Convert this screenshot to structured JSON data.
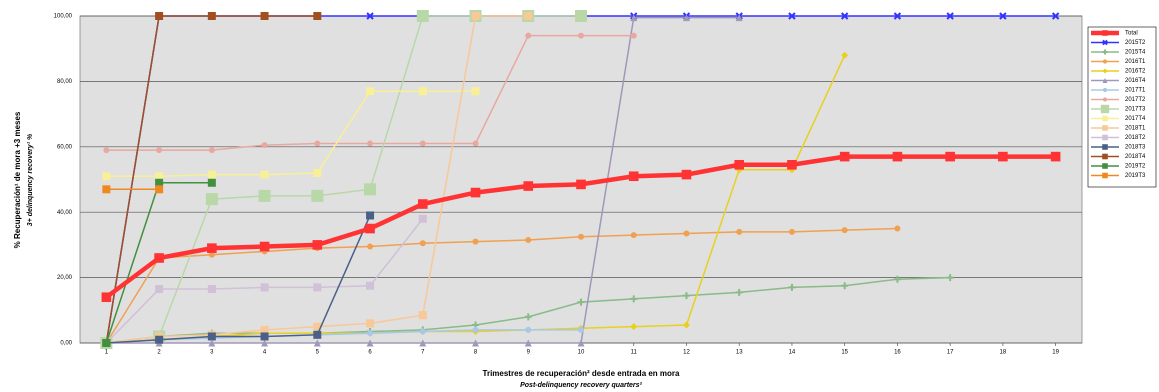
{
  "chart_data": {
    "type": "line",
    "y_title": "% Recuperación¹ de mora +3 meses",
    "y_subtitle": "3+ delinquency recovery¹ %",
    "x_title": "Trimestres de recuperación² desde entrada en mora",
    "x_subtitle": "Post-delinquency recovery quarters²",
    "x": [
      1,
      2,
      3,
      4,
      5,
      6,
      7,
      8,
      9,
      10,
      11,
      12,
      13,
      14,
      15,
      16,
      17,
      18,
      19
    ],
    "xlim": [
      0.5,
      19.5
    ],
    "xticks": [
      1,
      2,
      3,
      4,
      5,
      6,
      7,
      8,
      9,
      10,
      11,
      12,
      13,
      14,
      15,
      16,
      17,
      18,
      19
    ],
    "ylim": [
      0,
      100
    ],
    "yticks": [
      {
        "value": 0,
        "label": "0,00"
      },
      {
        "value": 20,
        "label": "20,00"
      },
      {
        "value": 40,
        "label": "40,00"
      },
      {
        "value": 60,
        "label": "60,00"
      },
      {
        "value": 80,
        "label": "80,00"
      },
      {
        "value": 100,
        "label": "100,00"
      }
    ],
    "grid": true,
    "legend": "right",
    "series": [
      {
        "name": "Total",
        "color": "#ff3333",
        "marker": "square",
        "width": 3,
        "values": [
          14,
          26,
          29,
          29.5,
          30,
          35,
          42.5,
          46,
          48,
          48.5,
          51,
          51.5,
          54.5,
          54.5,
          57,
          57,
          57,
          57,
          57
        ]
      },
      {
        "name": "2015T2",
        "color": "#3333ff",
        "marker": "x",
        "width": 1,
        "values": [
          0,
          100,
          100,
          100,
          100,
          100,
          100,
          100,
          100,
          100,
          100,
          100,
          100,
          100,
          100,
          100,
          100,
          100,
          100
        ]
      },
      {
        "name": "2015T4",
        "color": "#88bb88",
        "marker": "plus",
        "width": 1,
        "values": [
          0,
          2,
          3,
          3,
          3,
          3.5,
          4,
          5.5,
          8,
          12.5,
          13.5,
          14.5,
          15.5,
          17,
          17.5,
          19.5,
          20,
          null,
          null
        ]
      },
      {
        "name": "2016T1",
        "color": "#f0a050",
        "marker": "circle",
        "width": 1,
        "values": [
          0,
          26,
          27,
          28,
          29,
          29.5,
          30.5,
          31,
          31.5,
          32.5,
          33,
          33.5,
          34,
          34,
          34.5,
          35,
          null,
          null,
          null
        ]
      },
      {
        "name": "2016T2",
        "color": "#e8d020",
        "marker": "diamond",
        "width": 1,
        "values": [
          0,
          1,
          2,
          3,
          3,
          3,
          3.5,
          3.5,
          4,
          4.5,
          5,
          5.5,
          53,
          53,
          88,
          null,
          null,
          null,
          null
        ]
      },
      {
        "name": "2016T4",
        "color": "#a098b8",
        "marker": "triangle",
        "width": 1,
        "values": [
          0,
          0,
          0,
          0,
          0,
          0,
          0,
          0,
          0,
          0,
          99.5,
          99.5,
          99.5,
          null,
          null,
          null,
          null,
          null,
          null
        ]
      },
      {
        "name": "2017T1",
        "color": "#a8c8e8",
        "marker": "circle",
        "width": 1,
        "values": [
          0,
          1,
          1.5,
          2,
          2.5,
          3,
          3.5,
          4,
          4,
          4,
          null,
          null,
          null,
          null,
          null,
          null,
          null,
          null,
          null
        ]
      },
      {
        "name": "2017T2",
        "color": "#e8a8a0",
        "marker": "circle",
        "width": 1,
        "values": [
          59,
          59,
          59,
          60.5,
          61,
          61,
          61,
          61,
          94,
          94,
          94,
          null,
          null,
          null,
          null,
          null,
          null,
          null,
          null
        ]
      },
      {
        "name": "2017T3",
        "color": "#b8d8a8",
        "marker": "bigsquare",
        "width": 1,
        "values": [
          0,
          2,
          44,
          45,
          45,
          47,
          100,
          100,
          100,
          100,
          null,
          null,
          null,
          null,
          null,
          null,
          null,
          null,
          null
        ]
      },
      {
        "name": "2017T4",
        "color": "#f8f098",
        "marker": "square",
        "width": 1,
        "values": [
          51,
          51,
          51.5,
          51.5,
          52,
          77,
          77,
          77,
          null,
          null,
          null,
          null,
          null,
          null,
          null,
          null,
          null,
          null,
          null
        ]
      },
      {
        "name": "2018T1",
        "color": "#f8c898",
        "marker": "square",
        "width": 1,
        "values": [
          0,
          2,
          2.5,
          4,
          5,
          6,
          8.5,
          100,
          100,
          null,
          null,
          null,
          null,
          null,
          null,
          null,
          null,
          null,
          null
        ]
      },
      {
        "name": "2018T2",
        "color": "#d0c0d8",
        "marker": "square",
        "width": 1,
        "values": [
          0,
          16.5,
          16.5,
          17,
          17,
          17.5,
          38,
          null,
          null,
          null,
          null,
          null,
          null,
          null,
          null,
          null,
          null,
          null,
          null
        ]
      },
      {
        "name": "2018T3",
        "color": "#4a6088",
        "marker": "square",
        "width": 1,
        "values": [
          0,
          1,
          2,
          2,
          2.5,
          39,
          null,
          null,
          null,
          null,
          null,
          null,
          null,
          null,
          null,
          null,
          null,
          null,
          null
        ]
      },
      {
        "name": "2018T4",
        "color": "#a05020",
        "marker": "square",
        "width": 1,
        "values": [
          0,
          100,
          100,
          100,
          100,
          null,
          null,
          null,
          null,
          null,
          null,
          null,
          null,
          null,
          null,
          null,
          null,
          null,
          null
        ]
      },
      {
        "name": "2019T2",
        "color": "#409040",
        "marker": "square",
        "width": 1,
        "values": [
          0,
          49,
          49,
          null,
          null,
          null,
          null,
          null,
          null,
          null,
          null,
          null,
          null,
          null,
          null,
          null,
          null,
          null,
          null
        ]
      },
      {
        "name": "2019T3",
        "color": "#f08820",
        "marker": "square",
        "width": 1,
        "values": [
          47,
          47,
          null,
          null,
          null,
          null,
          null,
          null,
          null,
          null,
          null,
          null,
          null,
          null,
          null,
          null,
          null,
          null,
          null
        ]
      }
    ]
  }
}
